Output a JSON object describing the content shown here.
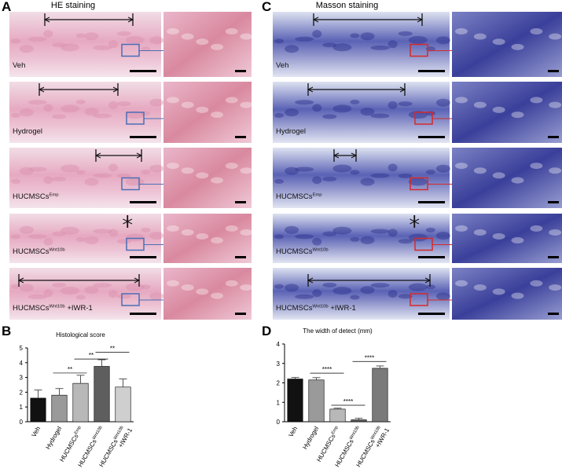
{
  "panels": {
    "A": {
      "letter": "A",
      "title": "HE staining",
      "rows": [
        {
          "text": "Veh"
        },
        {
          "text": "Hydrogel"
        },
        {
          "text": "HUCMSCs",
          "sup": "Emp"
        },
        {
          "text": "HUCMSCs",
          "sup": "Wnt10b"
        },
        {
          "text": "HUCMSCs",
          "sup": "Wnt10b",
          "suffix": " +IWR-1"
        }
      ]
    },
    "C": {
      "letter": "C",
      "title": "Masson staining",
      "rows": [
        {
          "text": "Veh"
        },
        {
          "text": "Hydrogel"
        },
        {
          "text": "HUCMSCs",
          "sup": "Emp"
        },
        {
          "text": "HUCMSCs",
          "sup": "Wnt10b"
        },
        {
          "text": "HUCMSCs",
          "sup": "Wnt10b",
          "suffix": " +IWR-1"
        }
      ]
    },
    "B": {
      "letter": "B"
    },
    "D": {
      "letter": "D"
    }
  },
  "chart_data": [
    {
      "type": "bar",
      "title": "Histological score",
      "categories": [
        "Veh",
        "Hydrogel",
        "HUCMSCs",
        "HUCMSCs",
        "HUCMSCs"
      ],
      "category_superscripts": [
        null,
        null,
        "Emp",
        "Wnt10b",
        "Wnt10b"
      ],
      "category_suffixes": [
        null,
        null,
        null,
        null,
        "+IWR-1"
      ],
      "values": [
        1.6,
        1.8,
        2.6,
        3.75,
        2.35
      ],
      "errors": [
        0.55,
        0.45,
        0.55,
        0.45,
        0.55
      ],
      "colors": [
        "#111111",
        "#9a9a9a",
        "#b8b8b8",
        "#5e5e5e",
        "#cfcfcf"
      ],
      "ylim": [
        0,
        5
      ],
      "yticks": [
        0,
        1,
        2,
        3,
        4,
        5
      ],
      "annotations": [
        {
          "text": "**",
          "from": 1,
          "to": 2,
          "y": 3.3
        },
        {
          "text": "**",
          "from": 2,
          "to": 3,
          "y": 4.25
        },
        {
          "text": "**",
          "from": 3,
          "to": 4,
          "y": 4.7
        }
      ]
    },
    {
      "type": "bar",
      "title": "The width of detect (mm)",
      "categories": [
        "Veh",
        "Hydrogel",
        "HUCMSCs",
        "HUCMSCs",
        "HUCMSCs"
      ],
      "category_superscripts": [
        null,
        null,
        "Emp",
        "Wnt10b",
        "Wnt10b"
      ],
      "category_suffixes": [
        null,
        null,
        null,
        null,
        "+IWR-1"
      ],
      "values": [
        2.2,
        2.15,
        0.65,
        0.1,
        2.75
      ],
      "errors": [
        0.08,
        0.12,
        0.05,
        0.08,
        0.12
      ],
      "colors": [
        "#111111",
        "#9a9a9a",
        "#b8b8b8",
        "#5e5e5e",
        "#7a7a7a"
      ],
      "ylim": [
        0,
        4
      ],
      "yticks": [
        0,
        1,
        2,
        3,
        4
      ],
      "annotations": [
        {
          "text": "****",
          "from": 1,
          "to": 2,
          "y": 2.5
        },
        {
          "text": "****",
          "from": 2,
          "to": 3,
          "y": 0.85
        },
        {
          "text": "****",
          "from": 3,
          "to": 4,
          "y": 3.1
        }
      ]
    }
  ]
}
